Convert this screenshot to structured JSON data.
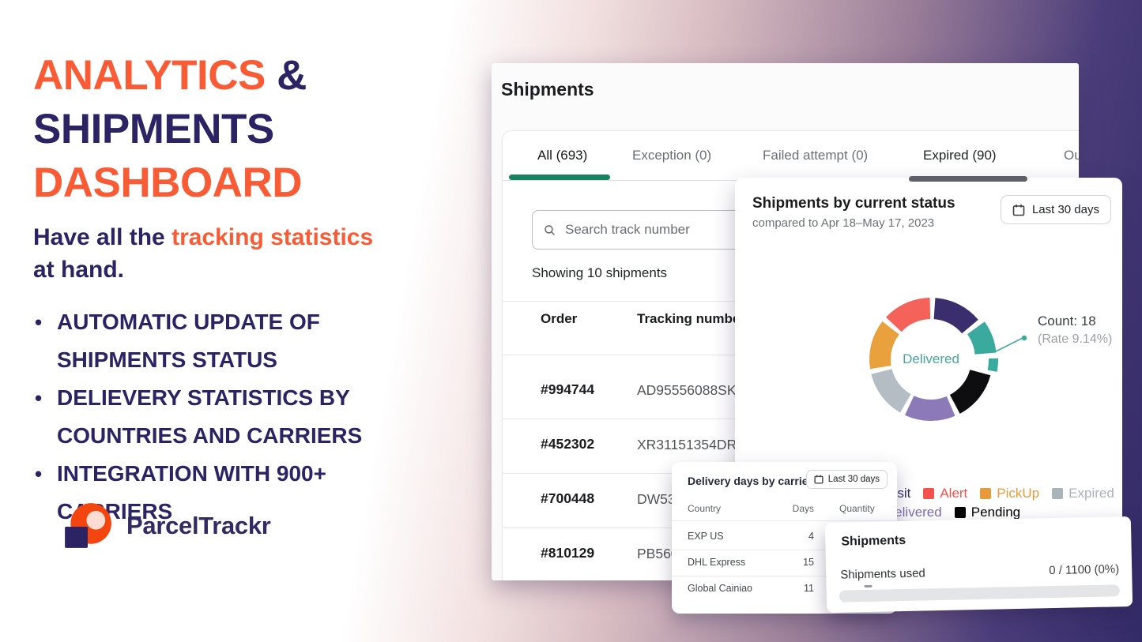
{
  "colors": {
    "accent_orange": "#F95B35",
    "navy": "#2B2363",
    "active_tab_green": "#17835C",
    "background_purple_dark": "#332B68",
    "background_pink": "#D8BDC2"
  },
  "hero": {
    "title_1a": "ANALYTICS",
    "title_1b": " &",
    "title_2": "SHIPMENTS",
    "title_3": "DASHBOARD",
    "sub_prefix": "Have all the ",
    "sub_accent": "tracking statistics",
    "sub_line2": "at hand.",
    "bullets": [
      {
        "l1": "AUTOMATIC UPDATE OF",
        "l2": "SHIPMENTS STATUS"
      },
      {
        "l1": "DELIEVERY STATISTICS BY",
        "l2": "COUNTRIES AND CARRIERS"
      },
      {
        "l1": "INTEGRATION WITH 900+",
        "l2": "CARRIERS"
      }
    ],
    "brand_1": "Parcel",
    "brand_2": "Trackr"
  },
  "window": {
    "title": "Shipments",
    "tabs": [
      {
        "label": "All (693)",
        "active": true
      },
      {
        "label": "Exception (0)"
      },
      {
        "label": "Failed attempt (0)"
      },
      {
        "label": "Expired (90)"
      },
      {
        "label": "Ou"
      }
    ],
    "search_placeholder": "Search track number",
    "showing": "Showing 10 shipments",
    "col_order": "Order",
    "col_tracking": "Tracking number",
    "rows": [
      {
        "order": "#994744",
        "tracking": "AD95556088SK"
      },
      {
        "order": "#452302",
        "tracking": "XR31151354DR"
      },
      {
        "order": "#700448",
        "tracking": "DW53"
      },
      {
        "order": "#810129",
        "tracking": "PB560"
      }
    ]
  },
  "status_card": {
    "title": "Shipments by current status",
    "subtitle": "compared to Apr 18–May 17, 2023",
    "range_button": "Last 30 days",
    "center_label": "Delivered",
    "count_text": "Count: 18",
    "rate_text": "(Rate 9.14%)"
  },
  "chart_data": {
    "type": "pie",
    "variant": "donut",
    "title": "Shipments by current status",
    "center_label": "Delivered",
    "annotation": {
      "count": 18,
      "rate_percent": 9.14
    },
    "legend_position": "bottom",
    "segments": [
      {
        "label": "Transit",
        "color": "#3A2E6E",
        "start_deg": 4,
        "end_deg": 50
      },
      {
        "label": "Delivered",
        "color": "#3AA99E",
        "start_deg": 54,
        "end_deg": 85,
        "offset": 5
      },
      {
        "label": "Delivered-highlight",
        "color": "#3AA99E",
        "start_deg": 89,
        "end_deg": 101,
        "offset": 3,
        "thin": true
      },
      {
        "label": "Pending",
        "color": "#0E0E10",
        "start_deg": 105,
        "end_deg": 152
      },
      {
        "label": "Undelivered",
        "color": "#8C7AB8",
        "start_deg": 157,
        "end_deg": 205
      },
      {
        "label": "Expired",
        "color": "#B3BDC3",
        "start_deg": 210,
        "end_deg": 256
      },
      {
        "label": "PickUp",
        "color": "#E8A13D",
        "start_deg": 261,
        "end_deg": 308
      },
      {
        "label": "Alert",
        "color": "#F4625A",
        "start_deg": 313,
        "end_deg": 359
      }
    ],
    "legend": [
      {
        "label": "Transit",
        "color": "#332C66"
      },
      {
        "label": "Alert",
        "color": "#F4524D"
      },
      {
        "label": "PickUp",
        "color": "#E79A3C"
      },
      {
        "label": "Expired",
        "color": "#A9B4BA"
      },
      {
        "label": "Undelivered",
        "color": "#7D6CAE"
      },
      {
        "label": "Pending",
        "color": "#000000"
      }
    ]
  },
  "carrier_card": {
    "title": "Delivery days by carrier",
    "range_button": "Last 30 days",
    "col_country": "Country",
    "col_days": "Days",
    "col_quantity": "Quantity",
    "rows": [
      {
        "country": "EXP US",
        "days": "4"
      },
      {
        "country": "DHL Express",
        "days": "15"
      },
      {
        "country": "Global Cainiao",
        "days": "11"
      }
    ]
  },
  "usage_card": {
    "title": "Shipments",
    "label": "Shipments used",
    "value": "0 / 1100 (0%)",
    "progress_percent": 0
  }
}
